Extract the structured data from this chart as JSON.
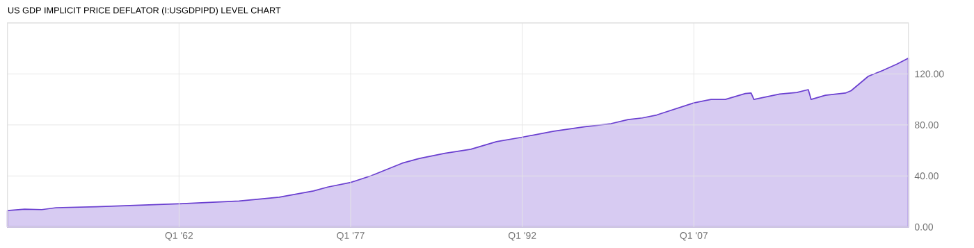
{
  "chart_data": {
    "type": "area",
    "title": "US GDP IMPLICIT PRICE DEFLATOR (I:USGDPIPD) LEVEL CHART",
    "x": [
      "1947-01",
      "1948-07",
      "1950-01",
      "1951-04",
      "1954-10",
      "1962-01",
      "1967-04",
      "1970-10",
      "1973-10",
      "1975-01",
      "1977-01",
      "1978-10",
      "1981-07",
      "1983-01",
      "1985-04",
      "1987-07",
      "1989-10",
      "1992-01",
      "1994-10",
      "1997-07",
      "1999-10",
      "2001-04",
      "2002-07",
      "2003-10",
      "2007-01",
      "2008-07",
      "2009-10",
      "2011-07",
      "2012-01",
      "2012-04",
      "2014-07",
      "2016-01",
      "2017-01",
      "2017-04",
      "2018-07",
      "2020-04",
      "2020-10",
      "2022-04",
      "2023-07",
      "2024-10",
      "2025-10"
    ],
    "series": [
      {
        "color": "#6a3fd0",
        "values": [
          12.8,
          14.0,
          13.6,
          15.1,
          15.8,
          18.2,
          20.4,
          23.3,
          28.2,
          31.3,
          34.9,
          40.0,
          50.0,
          53.7,
          57.8,
          60.9,
          66.9,
          70.4,
          75.1,
          78.6,
          81.0,
          84.2,
          85.5,
          87.8,
          97.3,
          100.0,
          100.0,
          104.6,
          105.0,
          100.0,
          104.2,
          105.5,
          107.7,
          100.0,
          103.3,
          105.0,
          106.9,
          118.2,
          122.7,
          127.7,
          132.4
        ]
      }
    ],
    "xlim": [
      "1947-01",
      "2025-10"
    ],
    "ylim": [
      0,
      160
    ],
    "xticks": [
      {
        "value": "1962-01",
        "label": "Q1 '62"
      },
      {
        "value": "1977-01",
        "label": "Q1 '77"
      },
      {
        "value": "1992-01",
        "label": "Q1 '92"
      },
      {
        "value": "2007-01",
        "label": "Q1 '07"
      }
    ],
    "yticks": [
      {
        "value": 0,
        "label": "0.00"
      },
      {
        "value": 40,
        "label": "40.00"
      },
      {
        "value": 80,
        "label": "80.00"
      },
      {
        "value": 120,
        "label": "120.00"
      }
    ],
    "grid": true
  }
}
